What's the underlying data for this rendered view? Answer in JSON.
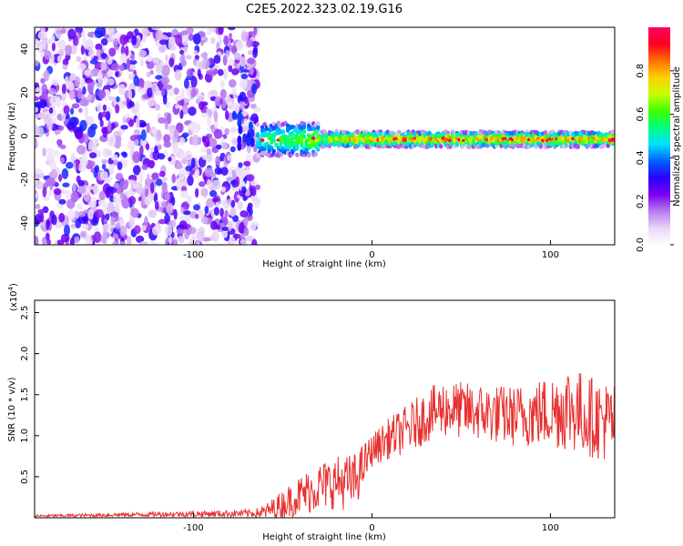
{
  "title": "C2E5.2022.323.02.19.G16",
  "chart_data": [
    {
      "type": "heatmap",
      "xlabel": "Height of straight line (km)",
      "ylabel": "Frequency (Hz)",
      "xlim": [
        -189,
        136
      ],
      "ylim": [
        -50,
        50
      ],
      "xticks": [
        -100,
        0,
        100
      ],
      "yticks": [
        -40,
        -20,
        0,
        20,
        40
      ],
      "colorbar": {
        "label": "Normalized spectral amplitude",
        "range": [
          0,
          1
        ],
        "ticks": [
          "0.0",
          "0.2",
          "0.4",
          "0.6",
          "0.8"
        ],
        "colors": [
          "#ffffff",
          "#e8d6f6",
          "#b77cf0",
          "#7b00f0",
          "#2b00ff",
          "#0060ff",
          "#00e0ff",
          "#00ff80",
          "#40ff00",
          "#c8ff00",
          "#ffd000",
          "#ff7000",
          "#ff0020",
          "#ff0060"
        ]
      },
      "regions": [
        {
          "name": "noise",
          "x": [
            -189,
            -64
          ],
          "y": [
            -50,
            50
          ],
          "amplitude": [
            0.05,
            0.35
          ]
        },
        {
          "name": "signal band",
          "x": [
            -64,
            136
          ],
          "center_frequency": -1.5,
          "half_width": 3.5,
          "amplitude": [
            0.3,
            0.95
          ]
        }
      ]
    },
    {
      "type": "line",
      "xlabel": "Height of straight line (km)",
      "ylabel": "SNR (10 * v/v)",
      "scale_label": "(x10",
      "scale_exp": "4",
      "scale_close": ")",
      "xlim": [
        -189,
        136
      ],
      "ylim": [
        0,
        26500
      ],
      "xticks": [
        -100,
        0,
        100
      ],
      "yticks": [
        5000,
        10000,
        15000,
        20000,
        25000
      ],
      "ytick_labels": [
        "0.5",
        "1.0",
        "1.5",
        "2.0",
        "2.5"
      ],
      "line_color": "#e83030",
      "envelope": [
        {
          "x": -189,
          "base": 200,
          "amp": 300
        },
        {
          "x": -120,
          "base": 400,
          "amp": 600
        },
        {
          "x": -66,
          "base": 500,
          "amp": 1000
        },
        {
          "x": -60,
          "base": 600,
          "amp": 1800
        },
        {
          "x": -50,
          "base": 1500,
          "amp": 3500
        },
        {
          "x": -40,
          "base": 2500,
          "amp": 5000
        },
        {
          "x": -30,
          "base": 3500,
          "amp": 6000
        },
        {
          "x": -20,
          "base": 4000,
          "amp": 6500
        },
        {
          "x": -10,
          "base": 4000,
          "amp": 7000
        },
        {
          "x": 0,
          "base": 8000,
          "amp": 4000
        },
        {
          "x": 10,
          "base": 9500,
          "amp": 5000
        },
        {
          "x": 20,
          "base": 10500,
          "amp": 6000
        },
        {
          "x": 30,
          "base": 12000,
          "amp": 6500
        },
        {
          "x": 40,
          "base": 13000,
          "amp": 7000
        },
        {
          "x": 60,
          "base": 12500,
          "amp": 7000
        },
        {
          "x": 80,
          "base": 12000,
          "amp": 7500
        },
        {
          "x": 100,
          "base": 12500,
          "amp": 9000
        },
        {
          "x": 110,
          "base": 13000,
          "amp": 11000
        },
        {
          "x": 120,
          "base": 12000,
          "amp": 10000
        },
        {
          "x": 136,
          "base": 11000,
          "amp": 10000
        }
      ]
    }
  ]
}
